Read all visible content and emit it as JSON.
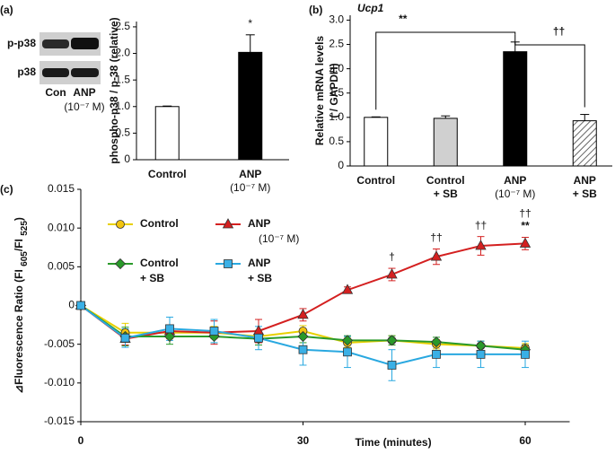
{
  "chart_data": [
    {
      "type": "bar",
      "panel": "(a)",
      "blot": {
        "rows": [
          "p-p38",
          "p38"
        ],
        "lanes": [
          "Con",
          "ANP"
        ],
        "lane_note": "(10⁻⁷ M)"
      },
      "ylabel": "phospho-p38 / p-38 (relative)",
      "categories": [
        "Control",
        "ANP"
      ],
      "category_notes": [
        null,
        "(10⁻⁷ M)"
      ],
      "values": [
        1.0,
        2.02
      ],
      "errors": [
        0.01,
        0.33
      ],
      "colors": [
        "#ffffff",
        "#000000"
      ],
      "hatched": [
        false,
        false
      ],
      "annotations": [
        null,
        "*"
      ],
      "ylim": [
        0,
        2.6
      ],
      "yticks": [
        0,
        0.5,
        {
          "value": 1,
          "label": "1.0"
        },
        1.5,
        {
          "value": 2,
          "label": "2.0"
        },
        2.5
      ]
    },
    {
      "type": "bar",
      "panel": "(b)",
      "title": "Ucp1",
      "ylabel": [
        "Relative mRNA levels",
        "( / GAPDH)"
      ],
      "categories": [
        "Control",
        "Control + SB",
        "ANP",
        "ANP + SB"
      ],
      "category_notes": [
        null,
        null,
        "(10⁻⁷ M)",
        null
      ],
      "values": [
        1.0,
        0.98,
        2.35,
        0.93
      ],
      "errors": [
        0.01,
        0.05,
        0.2,
        0.13
      ],
      "colors": [
        "#ffffff",
        "#d0d0d0",
        "#000000",
        "#ffffff"
      ],
      "hatched": [
        false,
        false,
        false,
        true
      ],
      "brackets": [
        "**",
        "††"
      ],
      "ylim": [
        0,
        3.1
      ],
      "yticks": [
        0,
        0.5,
        {
          "value": 1,
          "label": "1.0"
        },
        1.5,
        {
          "value": 2,
          "label": "2.0"
        },
        2.5,
        {
          "value": 3,
          "label": "3.0"
        }
      ]
    },
    {
      "type": "line",
      "panel": "(c)",
      "xlabel": "Time (minutes)",
      "ylabel_parts": [
        "⊿Fluorescence Ratio  (FI ",
        "605",
        "/FI ",
        "525",
        ")"
      ],
      "x": [
        0,
        6,
        12,
        18,
        24,
        30,
        36,
        42,
        48,
        54,
        60
      ],
      "series": [
        {
          "name": "Control",
          "color": "#e8d000",
          "marker": "circle",
          "marker_color": "#f2c40f",
          "values": [
            0,
            -0.0035,
            -0.0035,
            -0.0035,
            -0.004,
            -0.0033,
            -0.0048,
            -0.0045,
            -0.005,
            -0.0052,
            -0.0055
          ],
          "errors": [
            0.0002,
            0.0012,
            0.0008,
            0.0008,
            0.0008,
            0.0007,
            0.0006,
            0.0006,
            0.0006,
            0.0006,
            0.0006
          ]
        },
        {
          "name": "ANP",
          "note": "(10⁻⁷ M)",
          "color": "#d42020",
          "marker": "triangle",
          "marker_color": "#d42020",
          "values": [
            0,
            -0.0043,
            -0.0033,
            -0.0035,
            -0.0033,
            -0.0012,
            0.002,
            0.004,
            0.0063,
            0.0077,
            0.008
          ],
          "errors": [
            0.0002,
            0.0008,
            0.0008,
            0.0015,
            0.0015,
            0.0008,
            0.0004,
            0.0008,
            0.001,
            0.0012,
            0.0008
          ]
        },
        {
          "name": "Control + SB",
          "color": "#2a9a2a",
          "marker": "diamond",
          "marker_color": "#2a9a2a",
          "values": [
            0,
            -0.004,
            -0.004,
            -0.004,
            -0.0043,
            -0.004,
            -0.0045,
            -0.0045,
            -0.0047,
            -0.0052,
            -0.0057
          ],
          "errors": [
            0.0002,
            0.0012,
            0.001,
            0.0008,
            0.0008,
            0.0008,
            0.0006,
            0.0006,
            0.0006,
            0.0006,
            0.0006
          ]
        },
        {
          "name": "ANP + SB",
          "color": "#29a8e0",
          "marker": "square",
          "marker_color": "#3ab0e6",
          "values": [
            0,
            -0.0042,
            -0.003,
            -0.0033,
            -0.0042,
            -0.0057,
            -0.006,
            -0.0077,
            -0.0063,
            -0.0063,
            -0.0063
          ],
          "errors": [
            0.0002,
            0.0012,
            0.0015,
            0.0015,
            0.0015,
            0.002,
            0.002,
            0.002,
            0.0017,
            0.0017,
            0.0017
          ]
        }
      ],
      "annotations": [
        {
          "x": 42,
          "text": "†"
        },
        {
          "x": 48,
          "text": "††"
        },
        {
          "x": 54,
          "text": "††"
        },
        {
          "x": 60,
          "text": "††"
        },
        {
          "x": 60,
          "text": "**"
        }
      ],
      "xlim": [
        0,
        66
      ],
      "xticks": [
        0,
        30,
        60
      ],
      "ylim": [
        -0.015,
        0.015
      ],
      "yticks": [
        {
          "value": 0.015,
          "label": "0.015"
        },
        {
          "value": 0.01,
          "label": "0.010"
        },
        {
          "value": 0.005,
          "label": "0.005"
        },
        0,
        {
          "value": -0.005,
          "label": "-0.005"
        },
        {
          "value": -0.01,
          "label": "-0.010"
        },
        {
          "value": -0.015,
          "label": "-0.015"
        }
      ]
    }
  ]
}
